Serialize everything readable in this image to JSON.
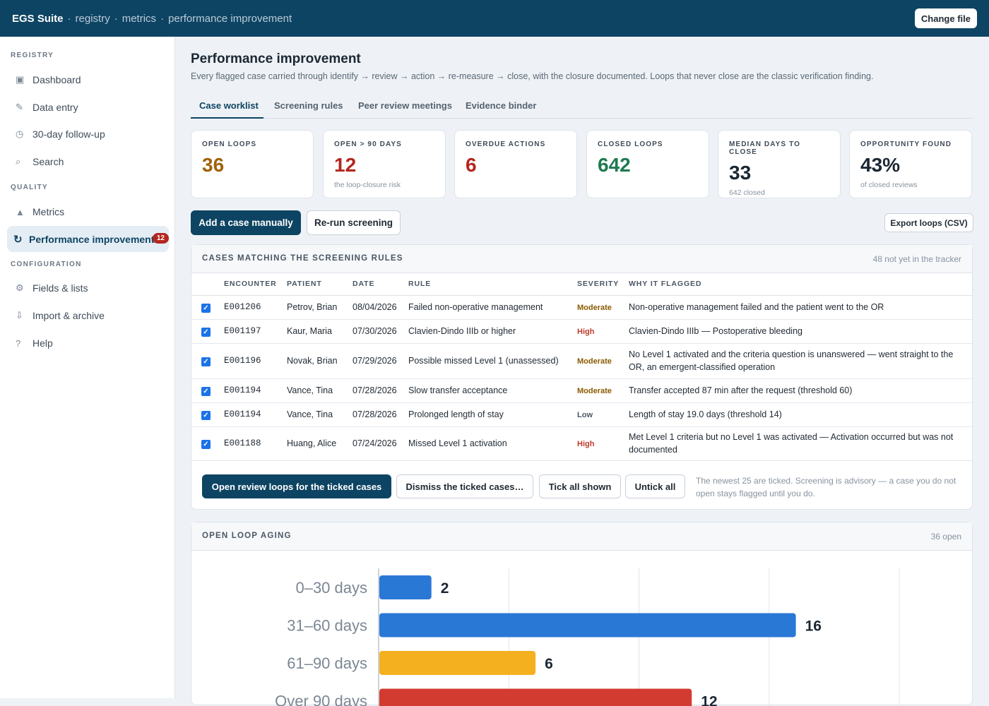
{
  "topbar": {
    "app_name": "EGS Suite",
    "crumbs": [
      "registry",
      "metrics",
      "performance improvement"
    ],
    "change_file": "Change file"
  },
  "sidebar": {
    "sections": [
      {
        "label": "REGISTRY"
      },
      {
        "label": "QUALITY"
      },
      {
        "label": "CONFIGURATION"
      }
    ],
    "items": [
      {
        "label": "Dashboard",
        "icon": "dashboard-icon",
        "glyph": "▣"
      },
      {
        "label": "Data entry",
        "icon": "pencil-icon",
        "glyph": "✎"
      },
      {
        "label": "30-day follow-up",
        "icon": "clock-icon",
        "glyph": "◷"
      },
      {
        "label": "Search",
        "icon": "search-icon",
        "glyph": "⌕"
      },
      {
        "label": "Metrics",
        "icon": "triangle-icon",
        "glyph": "▲"
      },
      {
        "label": "Performance improvement",
        "icon": "loop-icon",
        "glyph": "↻",
        "badge": "12",
        "active": true
      },
      {
        "label": "Fields & lists",
        "icon": "gear-icon",
        "glyph": "⚙"
      },
      {
        "label": "Import & archive",
        "icon": "download-icon",
        "glyph": "⇩"
      },
      {
        "label": "Help",
        "icon": "help-icon",
        "glyph": "?"
      }
    ]
  },
  "page": {
    "title": "Performance improvement",
    "description": "Every flagged case carried through identify → review → action → re-measure → close, with the closure documented. Loops that never close are the classic verification finding."
  },
  "tabs": [
    "Case worklist",
    "Screening rules",
    "Peer review meetings",
    "Evidence binder"
  ],
  "kpis": [
    {
      "label": "OPEN LOOPS",
      "value": "36",
      "sub": "",
      "color": "#a0620c"
    },
    {
      "label": "OPEN > 90 DAYS",
      "value": "12",
      "sub": "the loop-closure risk",
      "color": "#b3261e"
    },
    {
      "label": "OVERDUE ACTIONS",
      "value": "6",
      "sub": "",
      "color": "#b3261e"
    },
    {
      "label": "CLOSED LOOPS",
      "value": "642",
      "sub": "",
      "color": "#1e7a4f"
    },
    {
      "label": "MEDIAN DAYS TO CLOSE",
      "value": "33",
      "sub": "642 closed",
      "color": "#1b2733"
    },
    {
      "label": "OPPORTUNITY FOUND",
      "value": "43%",
      "sub": "of closed reviews",
      "color": "#1b2733"
    }
  ],
  "actions": {
    "add_case": "Add a case manually",
    "rerun": "Re-run screening",
    "export": "Export loops (CSV)"
  },
  "cases_panel": {
    "title": "CASES MATCHING THE SCREENING RULES",
    "note": "48 not yet in the tracker",
    "columns": [
      "ENCOUNTER",
      "PATIENT",
      "DATE",
      "RULE",
      "SEVERITY",
      "WHY IT FLAGGED"
    ],
    "rows": [
      {
        "encounter": "E001206",
        "patient": "Petrov, Brian",
        "date": "08/04/2026",
        "rule": "Failed non-operative management",
        "severity": "Moderate",
        "why": "Non-operative management failed and the patient went to the OR",
        "checked": true
      },
      {
        "encounter": "E001197",
        "patient": "Kaur, Maria",
        "date": "07/30/2026",
        "rule": "Clavien-Dindo IIIb or higher",
        "severity": "High",
        "why": "Clavien-Dindo IIIb — Postoperative bleeding",
        "checked": true
      },
      {
        "encounter": "E001196",
        "patient": "Novak, Brian",
        "date": "07/29/2026",
        "rule": "Possible missed Level 1 (unassessed)",
        "severity": "Moderate",
        "why": "No Level 1 activated and the criteria question is unanswered — went straight to the OR, an emergent-classified operation",
        "checked": true
      },
      {
        "encounter": "E001194",
        "patient": "Vance, Tina",
        "date": "07/28/2026",
        "rule": "Slow transfer acceptance",
        "severity": "Moderate",
        "why": "Transfer accepted 87 min after the request (threshold 60)",
        "checked": true
      },
      {
        "encounter": "E001194",
        "patient": "Vance, Tina",
        "date": "07/28/2026",
        "rule": "Prolonged length of stay",
        "severity": "Low",
        "why": "Length of stay 19.0 days (threshold 14)",
        "checked": true
      },
      {
        "encounter": "E001188",
        "patient": "Huang, Alice",
        "date": "07/24/2026",
        "rule": "Missed Level 1 activation",
        "severity": "High",
        "why": "Met Level 1 criteria but no Level 1 was activated — Activation occurred but was not documented",
        "checked": true
      }
    ],
    "buttons": {
      "open_loops": "Open review loops for the ticked cases",
      "dismiss": "Dismiss the ticked cases…",
      "tick_all": "Tick all shown",
      "untick_all": "Untick all"
    },
    "footnote": "The newest 25 are ticked. Screening is advisory — a case you do not open stays flagged until you do."
  },
  "aging_panel": {
    "title": "OPEN LOOP AGING",
    "note": "36 open"
  },
  "chart_data": {
    "type": "bar",
    "orientation": "horizontal",
    "categories": [
      "0–30 days",
      "31–60 days",
      "61–90 days",
      "Over 90 days"
    ],
    "values": [
      2,
      16,
      6,
      12
    ],
    "colors": [
      "#2a78d6",
      "#2a78d6",
      "#f5b020",
      "#d23b30"
    ],
    "xlim": [
      0,
      20
    ],
    "grid": true
  }
}
